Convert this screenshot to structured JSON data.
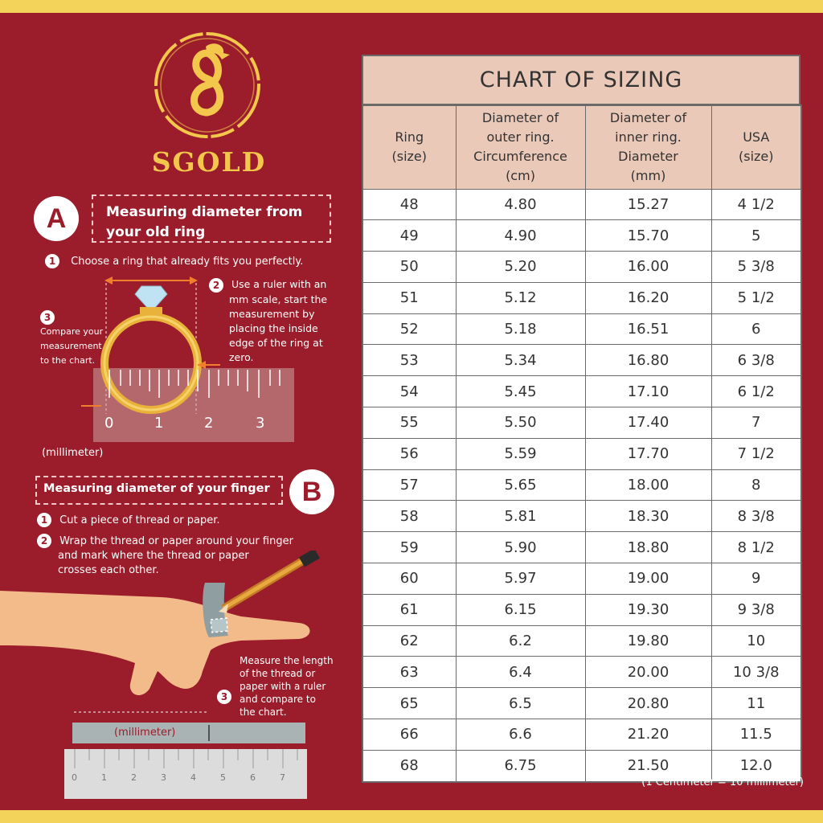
{
  "brand": {
    "name": "SGOLD"
  },
  "sectionA": {
    "badge": "A",
    "title_line1": "Measuring diameter from",
    "title_line2": "your old ring",
    "step1_num": "1",
    "step1": "Choose a ring that already fits you perfectly.",
    "step2_num": "2",
    "step2_lines": [
      "Use a ruler with an",
      "mm scale, start the",
      "measurement by",
      "placing the inside",
      "edge of the ring at",
      "zero."
    ],
    "step3_num": "3",
    "step3_lines": [
      "Compare your",
      "measurement",
      "to the chart."
    ],
    "ruler_ticks": [
      "0",
      "1",
      "2",
      "3"
    ],
    "ruler_unit": "(millimeter)"
  },
  "sectionB": {
    "badge": "B",
    "title": "Measuring diameter of your finger",
    "step1_num": "1",
    "step1": "Cut a piece of thread or paper.",
    "step2_num": "2",
    "step2_lines": [
      "Wrap the thread or paper around your finger",
      "and mark where the thread or paper",
      "crosses each other."
    ],
    "step3_num": "3",
    "step3_lines": [
      "Measure the length",
      "of the thread or",
      "paper with a ruler",
      "and compare to",
      "the chart."
    ],
    "strip_label": "(millimeter)",
    "ruler_ticks": [
      "0",
      "1",
      "2",
      "3",
      "4",
      "5",
      "6",
      "7"
    ]
  },
  "table": {
    "title": "CHART OF SIZING",
    "headers": [
      [
        "Ring",
        "(size)"
      ],
      [
        "Diameter of",
        "outer ring.",
        "Circumference",
        "(cm)"
      ],
      [
        "Diameter of",
        "inner ring.",
        "Diameter",
        "(mm)"
      ],
      [
        "USA",
        "(size)"
      ]
    ],
    "rows": [
      [
        "48",
        "4.80",
        "15.27",
        "4 1/2"
      ],
      [
        "49",
        "4.90",
        "15.70",
        "5"
      ],
      [
        "50",
        "5.20",
        "16.00",
        "5 3/8"
      ],
      [
        "51",
        "5.12",
        "16.20",
        "5 1/2"
      ],
      [
        "52",
        "5.18",
        "16.51",
        "6"
      ],
      [
        "53",
        "5.34",
        "16.80",
        "6 3/8"
      ],
      [
        "54",
        "5.45",
        "17.10",
        "6 1/2"
      ],
      [
        "55",
        "5.50",
        "17.40",
        "7"
      ],
      [
        "56",
        "5.59",
        "17.70",
        "7 1/2"
      ],
      [
        "57",
        "5.65",
        "18.00",
        "8"
      ],
      [
        "58",
        "5.81",
        "18.30",
        "8 3/8"
      ],
      [
        "59",
        "5.90",
        "18.80",
        "8 1/2"
      ],
      [
        "60",
        "5.97",
        "19.00",
        "9"
      ],
      [
        "61",
        "6.15",
        "19.30",
        "9 3/8"
      ],
      [
        "62",
        "6.2",
        "19.80",
        "10"
      ],
      [
        "63",
        "6.4",
        "20.00",
        "10 3/8"
      ],
      [
        "65",
        "6.5",
        "20.80",
        "11"
      ],
      [
        "66",
        "6.6",
        "21.20",
        "11.5"
      ],
      [
        "68",
        "6.75",
        "21.50",
        "12.0"
      ]
    ],
    "footnote": "(1 Centimeter = 10 millimeter)"
  },
  "colors": {
    "background": "#9b1c2a",
    "gold": "#f3c74b",
    "header": "#ebc9b9",
    "accent": "#f4d35a"
  }
}
